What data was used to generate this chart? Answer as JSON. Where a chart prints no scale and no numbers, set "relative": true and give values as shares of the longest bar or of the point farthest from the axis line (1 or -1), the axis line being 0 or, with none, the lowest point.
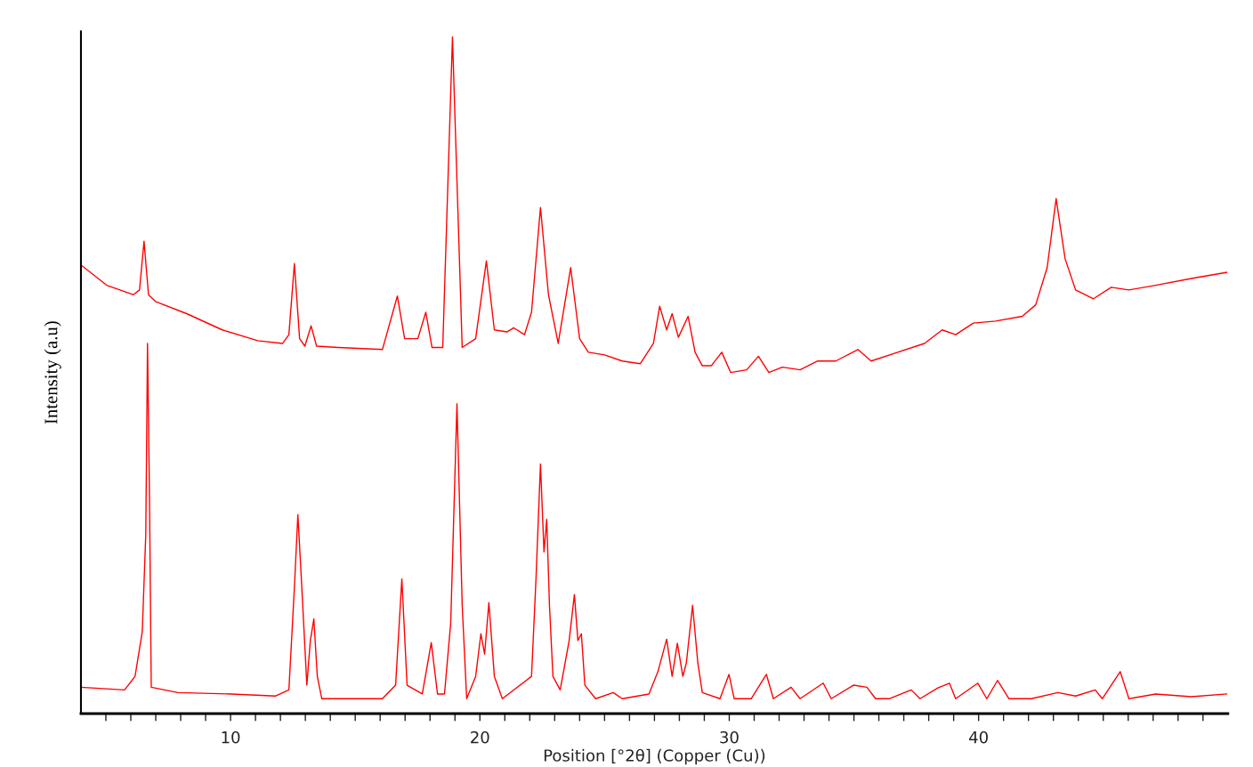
{
  "chart_data": {
    "type": "line",
    "relative": true,
    "xlabel": "Position [°2θ] (Copper (Cu))",
    "ylabel": "Intensity (a.u)",
    "xlim": [
      4,
      50
    ],
    "xticks": [
      {
        "value": 5,
        "label": null
      },
      {
        "value": 6,
        "label": null
      },
      {
        "value": 7,
        "label": null
      },
      {
        "value": 8,
        "label": null
      },
      {
        "value": 9,
        "label": null
      },
      10,
      {
        "value": 11,
        "label": null
      },
      {
        "value": 12,
        "label": null
      },
      {
        "value": 13,
        "label": null
      },
      {
        "value": 14,
        "label": null
      },
      {
        "value": 15,
        "label": null
      },
      {
        "value": 16,
        "label": null
      },
      {
        "value": 17,
        "label": null
      },
      {
        "value": 18,
        "label": null
      },
      {
        "value": 19,
        "label": null
      },
      20,
      {
        "value": 21,
        "label": null
      },
      {
        "value": 22,
        "label": null
      },
      {
        "value": 23,
        "label": null
      },
      {
        "value": 24,
        "label": null
      },
      {
        "value": 25,
        "label": null
      },
      {
        "value": 26,
        "label": null
      },
      {
        "value": 27,
        "label": null
      },
      {
        "value": 28,
        "label": null
      },
      {
        "value": 29,
        "label": null
      },
      30,
      {
        "value": 31,
        "label": null
      },
      {
        "value": 32,
        "label": null
      },
      {
        "value": 33,
        "label": null
      },
      {
        "value": 34,
        "label": null
      },
      {
        "value": 35,
        "label": null
      },
      {
        "value": 36,
        "label": null
      },
      {
        "value": 37,
        "label": null
      },
      {
        "value": 38,
        "label": null
      },
      {
        "value": 39,
        "label": null
      },
      40,
      {
        "value": 41,
        "label": null
      },
      {
        "value": 42,
        "label": null
      },
      {
        "value": 43,
        "label": null
      },
      {
        "value": 44,
        "label": null
      },
      {
        "value": 45,
        "label": null
      },
      {
        "value": 46,
        "label": null
      },
      {
        "value": 47,
        "label": null
      },
      {
        "value": 48,
        "label": null
      },
      {
        "value": 49,
        "label": null
      }
    ],
    "tick_labels": "x",
    "grid": false,
    "legend": false,
    "marker": "none",
    "line_style": "solid",
    "series": [
      {
        "color": "#ff0000",
        "x": [
          4.0,
          5.03,
          6.1,
          6.35,
          6.53,
          6.71,
          6.99,
          8.24,
          9.67,
          11.09,
          12.09,
          12.34,
          12.56,
          12.77,
          12.98,
          13.23,
          13.45,
          14.3,
          16.09,
          16.69,
          16.98,
          17.51,
          17.83,
          18.08,
          18.51,
          18.9,
          19.29,
          19.83,
          20.26,
          20.58,
          21.08,
          21.36,
          21.79,
          22.07,
          22.43,
          22.75,
          23.14,
          23.64,
          24.0,
          24.35,
          25.0,
          25.71,
          26.43,
          26.96,
          27.21,
          27.49,
          27.71,
          27.96,
          28.35,
          28.63,
          28.92,
          29.28,
          29.7,
          30.06,
          30.7,
          31.17,
          31.59,
          32.13,
          32.84,
          33.55,
          34.27,
          35.16,
          35.69,
          36.76,
          37.83,
          38.54,
          39.08,
          39.79,
          40.68,
          41.75,
          42.29,
          42.75,
          43.11,
          43.47,
          43.89,
          44.61,
          45.32,
          46.03,
          47.1,
          48.53,
          49.95
        ],
        "values": [
          0.663,
          0.633,
          0.619,
          0.626,
          0.698,
          0.619,
          0.609,
          0.591,
          0.567,
          0.551,
          0.547,
          0.56,
          0.665,
          0.554,
          0.543,
          0.573,
          0.543,
          0.541,
          0.538,
          0.617,
          0.554,
          0.554,
          0.593,
          0.541,
          0.541,
          1.0,
          0.541,
          0.554,
          0.669,
          0.567,
          0.564,
          0.57,
          0.56,
          0.593,
          0.748,
          0.619,
          0.547,
          0.659,
          0.554,
          0.534,
          0.53,
          0.521,
          0.517,
          0.547,
          0.602,
          0.567,
          0.591,
          0.556,
          0.587,
          0.534,
          0.514,
          0.514,
          0.534,
          0.504,
          0.508,
          0.528,
          0.504,
          0.512,
          0.508,
          0.521,
          0.521,
          0.538,
          0.521,
          0.534,
          0.547,
          0.567,
          0.56,
          0.577,
          0.58,
          0.587,
          0.604,
          0.659,
          0.761,
          0.672,
          0.626,
          0.613,
          0.63,
          0.626,
          0.633,
          0.643,
          0.652
        ]
      },
      {
        "color": "#ff0000",
        "x": [
          4.0,
          5.75,
          6.17,
          6.46,
          6.6,
          6.67,
          6.75,
          6.82,
          7.89,
          10.03,
          11.81,
          12.34,
          12.56,
          12.7,
          12.84,
          13.06,
          13.2,
          13.34,
          13.48,
          13.66,
          16.09,
          16.62,
          16.87,
          17.08,
          17.69,
          18.05,
          18.3,
          18.58,
          18.83,
          19.08,
          19.29,
          19.47,
          19.83,
          20.04,
          20.19,
          20.36,
          20.58,
          20.9,
          22.07,
          22.25,
          22.43,
          22.57,
          22.68,
          22.79,
          22.93,
          23.22,
          23.58,
          23.79,
          23.93,
          24.07,
          24.21,
          24.64,
          25.35,
          25.71,
          26.78,
          27.14,
          27.49,
          27.71,
          27.92,
          28.14,
          28.28,
          28.53,
          28.74,
          28.92,
          29.63,
          29.99,
          30.2,
          30.88,
          31.49,
          31.77,
          32.48,
          32.84,
          33.77,
          34.09,
          34.98,
          35.52,
          35.87,
          36.41,
          37.3,
          37.65,
          38.37,
          38.83,
          39.08,
          39.97,
          40.33,
          40.76,
          41.22,
          42.11,
          43.18,
          43.89,
          44.68,
          44.96,
          45.68,
          46.03,
          47.1,
          48.53,
          49.95
        ],
        "values": [
          0.039,
          0.035,
          0.055,
          0.121,
          0.265,
          0.547,
          0.318,
          0.039,
          0.031,
          0.029,
          0.026,
          0.035,
          0.186,
          0.294,
          0.199,
          0.042,
          0.108,
          0.14,
          0.055,
          0.022,
          0.022,
          0.042,
          0.199,
          0.042,
          0.029,
          0.105,
          0.029,
          0.029,
          0.134,
          0.458,
          0.16,
          0.022,
          0.055,
          0.118,
          0.088,
          0.164,
          0.055,
          0.022,
          0.055,
          0.199,
          0.369,
          0.239,
          0.287,
          0.16,
          0.055,
          0.035,
          0.108,
          0.176,
          0.108,
          0.118,
          0.042,
          0.022,
          0.031,
          0.022,
          0.029,
          0.062,
          0.11,
          0.055,
          0.104,
          0.055,
          0.075,
          0.16,
          0.075,
          0.031,
          0.022,
          0.058,
          0.022,
          0.022,
          0.058,
          0.022,
          0.039,
          0.022,
          0.045,
          0.022,
          0.042,
          0.039,
          0.022,
          0.022,
          0.035,
          0.022,
          0.038,
          0.045,
          0.022,
          0.045,
          0.022,
          0.049,
          0.022,
          0.022,
          0.031,
          0.026,
          0.035,
          0.022,
          0.062,
          0.022,
          0.029,
          0.025,
          0.029
        ]
      }
    ]
  }
}
